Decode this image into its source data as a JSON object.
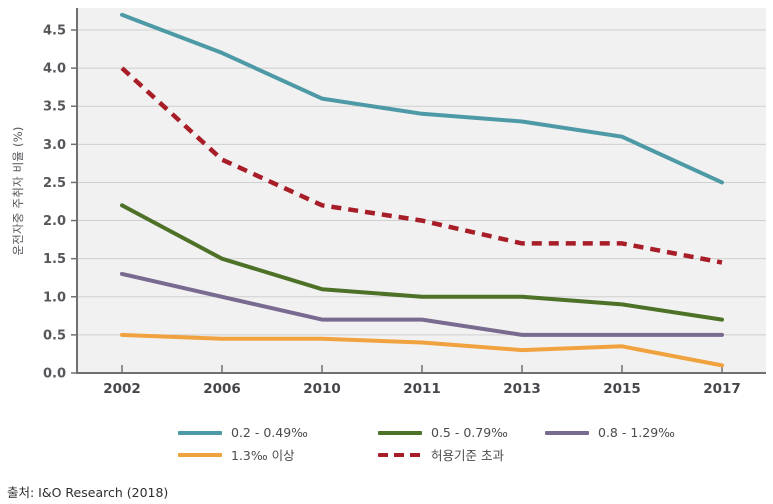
{
  "chart_data": {
    "type": "line",
    "title": "",
    "ylabel": "운전자중 주취자 비율 (%)",
    "xlabel": "",
    "x_categories": [
      "2002",
      "2006",
      "2010",
      "2011",
      "2013",
      "2015",
      "2017"
    ],
    "y_tick_labels": [
      "0.0",
      "0.5",
      "1.0",
      "1.5",
      "2.0",
      "2.5",
      "3.0",
      "3.5",
      "4.0",
      "4.5"
    ],
    "ylim": [
      0,
      4.8
    ],
    "grid": "horizontal-only",
    "legend_position": "bottom",
    "plot_bg_color": "#f1f1f1",
    "grid_color": "#cfcfcf",
    "axis_color": "#707070",
    "tick_text_color": "#56575b",
    "series": [
      {
        "name": "0.2 - 0.49‰",
        "color": "#4d9aa6",
        "style": "solid",
        "values": [
          4.7,
          4.2,
          3.6,
          3.4,
          3.3,
          3.1,
          2.5
        ]
      },
      {
        "name": "0.5 - 0.79‰",
        "color": "#4c7127",
        "style": "solid",
        "values": [
          2.2,
          1.5,
          1.1,
          1.0,
          1.0,
          0.9,
          0.7
        ]
      },
      {
        "name": "0.8 - 1.29‰",
        "color": "#796a90",
        "style": "solid",
        "values": [
          1.3,
          1.0,
          0.7,
          0.7,
          0.5,
          0.5,
          0.5
        ]
      },
      {
        "name": "1.3‰ 이상",
        "color": "#f0a23f",
        "style": "solid",
        "values": [
          0.5,
          0.45,
          0.45,
          0.4,
          0.3,
          0.35,
          0.1
        ]
      },
      {
        "name": "허용기준 초과",
        "color": "#a81e28",
        "style": "dashed",
        "values": [
          4.0,
          2.8,
          2.2,
          2.0,
          1.7,
          1.7,
          1.45
        ]
      }
    ]
  },
  "source": "출처: I&O Research (2018)"
}
